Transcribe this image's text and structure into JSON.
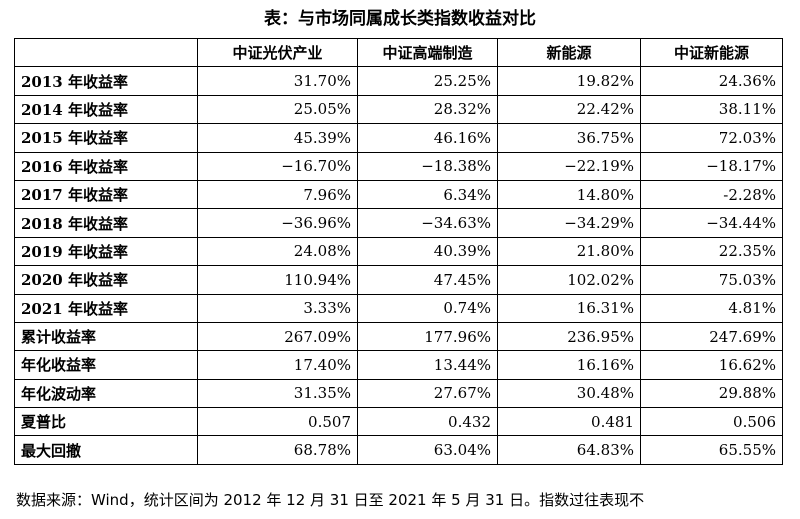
{
  "title": "表：与市场同属成长类指数收益对比",
  "table": {
    "header": [
      "",
      "中证光伏产业",
      "中证高端制造",
      "新能源",
      "中证新能源"
    ],
    "rows": [
      [
        "2013 年收益率",
        "31.70%",
        "25.25%",
        "19.82%",
        "24.36%"
      ],
      [
        "2014 年收益率",
        "25.05%",
        "28.32%",
        "22.42%",
        "38.11%"
      ],
      [
        "2015 年收益率",
        "45.39%",
        "46.16%",
        "36.75%",
        "72.03%"
      ],
      [
        "2016 年收益率",
        "−16.70%",
        "−18.38%",
        "−22.19%",
        "−18.17%"
      ],
      [
        "2017 年收益率",
        "7.96%",
        "6.34%",
        "14.80%",
        "-2.28%"
      ],
      [
        "2018 年收益率",
        "−36.96%",
        "−34.63%",
        "−34.29%",
        "−34.44%"
      ],
      [
        "2019 年收益率",
        "24.08%",
        "40.39%",
        "21.80%",
        "22.35%"
      ],
      [
        "2020 年收益率",
        "110.94%",
        "47.45%",
        "102.02%",
        "75.03%"
      ],
      [
        "2021 年收益率",
        "3.33%",
        "0.74%",
        "16.31%",
        "4.81%"
      ],
      [
        "累计收益率",
        "267.09%",
        "177.96%",
        "236.95%",
        "247.69%"
      ],
      [
        "年化收益率",
        "17.40%",
        "13.44%",
        "16.16%",
        "16.62%"
      ],
      [
        "年化波动率",
        "31.35%",
        "27.67%",
        "30.48%",
        "29.88%"
      ],
      [
        "夏普比",
        "0.507",
        "0.432",
        "0.481",
        "0.506"
      ],
      [
        "最大回撤",
        "68.78%",
        "63.04%",
        "64.83%",
        "65.55%"
      ]
    ]
  },
  "footer": "数据来源：Wind，统计区间为 2012 年 12 月 31 日至 2021 年 5 月 31 日。指数过往表现不"
}
